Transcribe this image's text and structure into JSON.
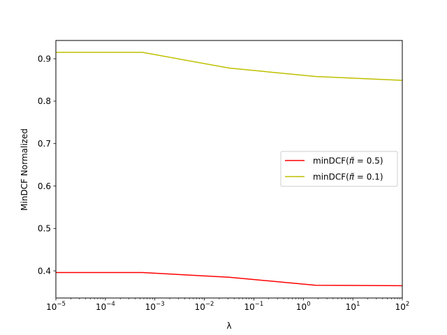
{
  "chart_data": {
    "type": "line",
    "title": "",
    "xlabel": "λ",
    "ylabel": "MinDCF Normalized",
    "xscale": "log",
    "xlim": [
      1e-05,
      100
    ],
    "ylim": [
      0.336,
      0.943
    ],
    "x_ticks": [
      {
        "value": 1e-05,
        "base": "10",
        "exp": "−5"
      },
      {
        "value": 0.0001,
        "base": "10",
        "exp": "−4"
      },
      {
        "value": 0.001,
        "base": "10",
        "exp": "−3"
      },
      {
        "value": 0.01,
        "base": "10",
        "exp": "−2"
      },
      {
        "value": 0.1,
        "base": "10",
        "exp": "−1"
      },
      {
        "value": 1,
        "base": "10",
        "exp": "0"
      },
      {
        "value": 10,
        "base": "10",
        "exp": "1"
      },
      {
        "value": 100,
        "base": "10",
        "exp": "2"
      }
    ],
    "y_ticks": [
      {
        "value": 0.4,
        "label": "0.4"
      },
      {
        "value": 0.5,
        "label": "0.5"
      },
      {
        "value": 0.6,
        "label": "0.6"
      },
      {
        "value": 0.7,
        "label": "0.7"
      },
      {
        "value": 0.8,
        "label": "0.8"
      },
      {
        "value": 0.9,
        "label": "0.9"
      }
    ],
    "x": [
      1e-05,
      0.000562,
      0.0316,
      1.78,
      100
    ],
    "series": [
      {
        "name": "minDCF(π̃ = 0.5)",
        "color": "#ff0000",
        "values": [
          0.396,
          0.396,
          0.385,
          0.366,
          0.365
        ]
      },
      {
        "name": "minDCF(π̃ = 0.1)",
        "color": "#bfbf00",
        "values": [
          0.915,
          0.915,
          0.878,
          0.858,
          0.849
        ]
      }
    ],
    "legend": {
      "position": "center-right",
      "entries": [
        {
          "prefix": "minDCF(",
          "symbol": "π̃",
          "suffix": " = 0.5)"
        },
        {
          "prefix": "minDCF(",
          "symbol": "π̃",
          "suffix": " = 0.1)"
        }
      ]
    },
    "grid": false
  }
}
